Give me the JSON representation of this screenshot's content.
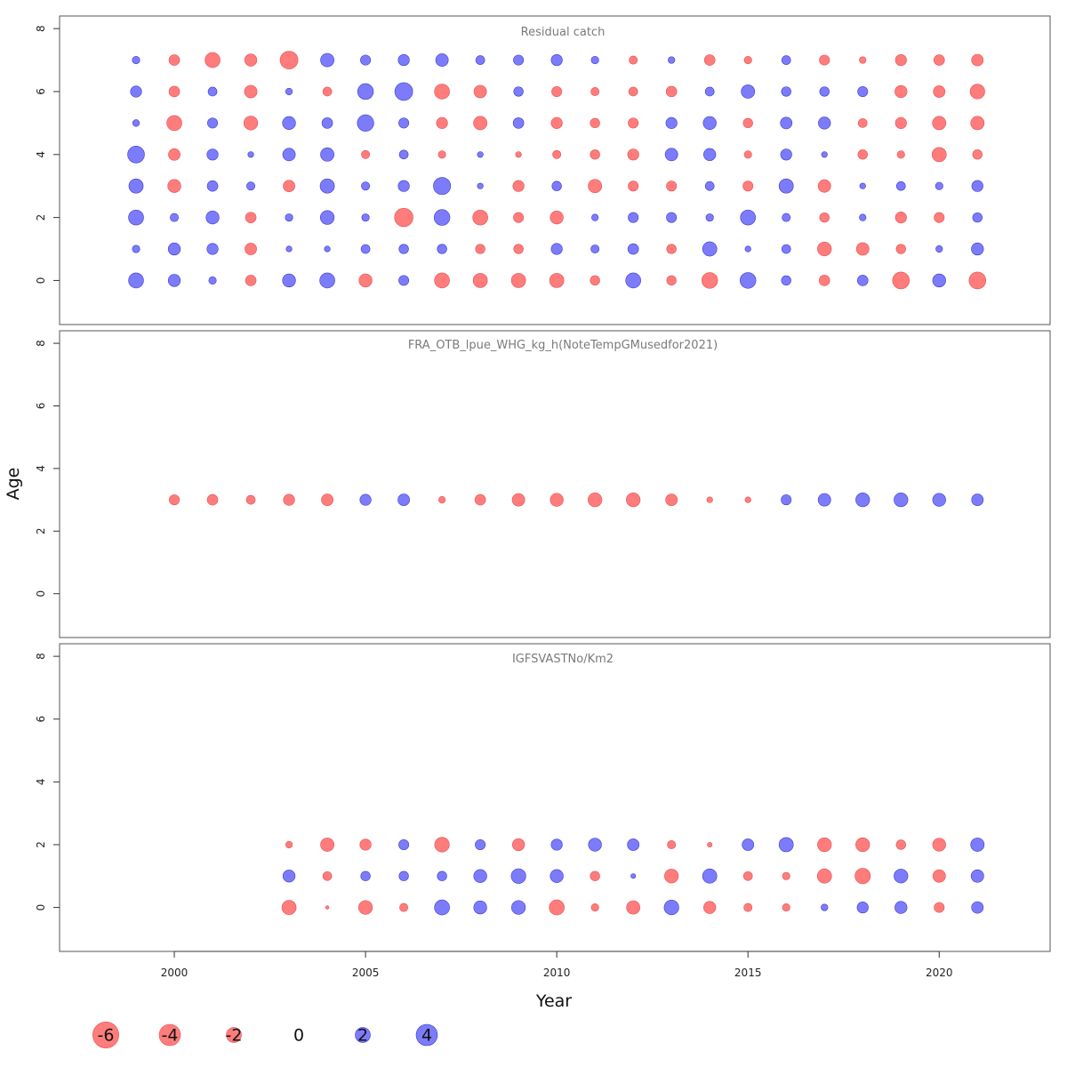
{
  "colors": {
    "positive": "#6464ff",
    "negative": "#ff6464",
    "frame": "#555555",
    "title": "#7a7a7a"
  },
  "chart_data": {
    "type": "scatter",
    "subtype": "bubble",
    "xlabel": "Year",
    "ylabel": "Age",
    "xlim": [
      1997.0,
      2022.9
    ],
    "x_ticks": [
      "2000",
      "2005",
      "2010",
      "2015",
      "2020"
    ],
    "y_ticks": [
      "0",
      "2",
      "4",
      "6",
      "8"
    ],
    "grid": false,
    "legend_position": "bottom-left",
    "legend": [
      "-6",
      "-4",
      "-2",
      "0",
      "2",
      "4"
    ],
    "panels": [
      {
        "title": "Residual catch",
        "ylim": [
          -1.4,
          8.4
        ],
        "ages": [
          0,
          1,
          2,
          3,
          4,
          5,
          6,
          7
        ],
        "years": [
          1999,
          2000,
          2001,
          2002,
          2003,
          2004,
          2005,
          2006,
          2007,
          2008,
          2009,
          2010,
          2011,
          2012,
          2013,
          2014,
          2015,
          2016,
          2017,
          2018,
          2019,
          2020,
          2021
        ],
        "residuals": [
          [
            2.0,
            1.3,
            0.5,
            -1.0,
            1.5,
            2.0,
            -1.5,
            0.9,
            -2.0,
            -1.8,
            -1.8,
            -1.8,
            -0.8,
            2.0,
            -0.8,
            -2.2,
            2.2,
            0.8,
            -1.0,
            1.0,
            -2.5,
            1.5,
            -2.5
          ],
          [
            0.5,
            1.3,
            1.1,
            -1.2,
            0.3,
            0.3,
            0.7,
            0.8,
            0.8,
            -0.8,
            -0.8,
            1.1,
            0.6,
            1.0,
            -0.8,
            1.8,
            0.3,
            0.7,
            -1.7,
            -1.4,
            -0.8,
            0.4,
            1.3
          ],
          [
            2.0,
            0.6,
            1.5,
            -1.0,
            0.5,
            1.7,
            0.5,
            -3.0,
            2.2,
            -2.0,
            -0.9,
            -1.5,
            0.4,
            0.9,
            0.9,
            0.5,
            2.0,
            0.6,
            -0.8,
            0.4,
            -1.1,
            -0.9,
            0.8
          ],
          [
            1.8,
            -1.5,
            1.0,
            0.6,
            -1.2,
            1.8,
            0.6,
            1.1,
            2.6,
            0.3,
            -1.1,
            0.8,
            -1.6,
            -0.9,
            -0.9,
            0.7,
            -0.9,
            1.8,
            -1.4,
            0.3,
            0.7,
            0.5,
            1.1
          ],
          [
            2.5,
            -1.2,
            1.1,
            0.3,
            1.4,
            1.6,
            -0.6,
            0.7,
            -0.5,
            0.3,
            -0.3,
            -0.6,
            -0.8,
            -1.1,
            1.4,
            1.3,
            -0.5,
            1.1,
            0.3,
            -0.8,
            -0.5,
            -1.8,
            -0.8
          ],
          [
            0.4,
            -2.0,
            0.9,
            -1.7,
            1.5,
            1.0,
            2.4,
            0.9,
            -1.1,
            -1.6,
            1.0,
            -1.1,
            -0.8,
            -0.9,
            1.1,
            1.5,
            -0.8,
            1.2,
            1.3,
            -0.7,
            -1.1,
            -1.6,
            -1.6
          ],
          [
            1.1,
            -1.0,
            0.7,
            -1.4,
            0.4,
            -0.7,
            2.2,
            2.8,
            -2.0,
            -1.4,
            0.8,
            -0.9,
            -0.6,
            -0.7,
            -1.0,
            0.7,
            1.6,
            0.8,
            0.8,
            0.9,
            -1.3,
            -1.2,
            -1.9
          ],
          [
            0.5,
            -1.0,
            -2.0,
            -1.3,
            -2.8,
            1.6,
            0.9,
            1.1,
            1.4,
            0.7,
            0.9,
            1.1,
            0.5,
            -0.6,
            0.4,
            -1.0,
            -0.5,
            0.7,
            -0.9,
            -0.4,
            -1.1,
            -1.0,
            -1.2
          ]
        ]
      },
      {
        "title": "FRA_OTB_lpue_WHG_kg_h(NoteTempGMusedfor2021)",
        "ylim": [
          -1.4,
          8.4
        ],
        "ages": [
          3
        ],
        "years": [
          2000,
          2001,
          2002,
          2003,
          2004,
          2005,
          2006,
          2007,
          2008,
          2009,
          2010,
          2011,
          2012,
          2013,
          2014,
          2015,
          2016,
          2017,
          2018,
          2019,
          2020,
          2021
        ],
        "residuals": [
          [
            -0.9,
            -1.0,
            -0.7,
            -1.1,
            -1.2,
            1.1,
            1.2,
            -0.4,
            -1.0,
            -1.4,
            -1.5,
            -1.7,
            -1.7,
            -1.2,
            -0.3,
            -0.3,
            0.9,
            1.4,
            1.7,
            1.7,
            1.5,
            1.2
          ]
        ]
      },
      {
        "title": "IGFSVASTNo/Km2",
        "ylim": [
          -1.4,
          8.4
        ],
        "ages": [
          0,
          1,
          2
        ],
        "years": [
          2003,
          2004,
          2005,
          2006,
          2007,
          2008,
          2009,
          2010,
          2011,
          2012,
          2013,
          2014,
          2015,
          2016,
          2017,
          2018,
          2019,
          2020,
          2021
        ],
        "residuals": [
          [
            -1.8,
            -0.1,
            -1.7,
            -0.6,
            2.0,
            1.5,
            1.7,
            -2.0,
            -0.5,
            -1.6,
            1.9,
            -1.3,
            -0.6,
            -0.5,
            0.4,
            1.1,
            1.3,
            -0.9,
            1.2
          ],
          [
            1.3,
            -0.7,
            0.8,
            0.8,
            0.8,
            1.5,
            1.9,
            1.5,
            -0.8,
            0.2,
            -1.7,
            1.8,
            -0.7,
            -0.5,
            -1.8,
            -2.1,
            1.7,
            -1.4,
            1.4
          ],
          [
            -0.4,
            -1.6,
            -1.1,
            0.9,
            -1.9,
            0.9,
            -1.3,
            1.1,
            1.5,
            1.2,
            -0.6,
            -0.2,
            1.2,
            1.8,
            -1.7,
            -1.7,
            -0.8,
            -1.5,
            1.6
          ]
        ]
      }
    ]
  }
}
